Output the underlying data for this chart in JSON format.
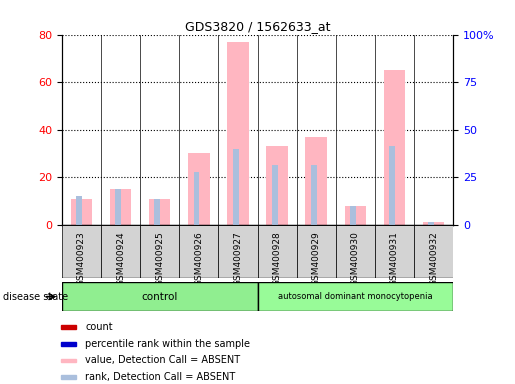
{
  "title": "GDS3820 / 1562633_at",
  "samples": [
    "GSM400923",
    "GSM400924",
    "GSM400925",
    "GSM400926",
    "GSM400927",
    "GSM400928",
    "GSM400929",
    "GSM400930",
    "GSM400931",
    "GSM400932"
  ],
  "value_absent": [
    11,
    15,
    11,
    30,
    77,
    33,
    37,
    8,
    65,
    1
  ],
  "rank_absent": [
    12,
    15,
    11,
    22,
    32,
    25,
    25,
    8,
    33,
    1
  ],
  "ylim_left": [
    0,
    80
  ],
  "ylim_right": [
    0,
    100
  ],
  "yticks_left": [
    0,
    20,
    40,
    60,
    80
  ],
  "yticks_right": [
    0,
    25,
    50,
    75,
    100
  ],
  "yticklabels_right": [
    "0",
    "25",
    "50",
    "75",
    "100%"
  ],
  "bar_color_pink": "#FFB6C1",
  "bar_color_lightblue": "#AABFDD",
  "dot_color_red": "#CC0000",
  "dot_color_blue": "#0000CC",
  "background_color": "#D3D3D3",
  "legend_items": [
    {
      "color": "#CC0000",
      "label": "count"
    },
    {
      "color": "#0000CC",
      "label": "percentile rank within the sample"
    },
    {
      "color": "#FFB6C1",
      "label": "value, Detection Call = ABSENT"
    },
    {
      "color": "#AABFDD",
      "label": "rank, Detection Call = ABSENT"
    }
  ],
  "disease_state_label": "disease state",
  "group_names": [
    "control",
    "autosomal dominant monocytopenia"
  ],
  "group_colors": [
    "#90EE90",
    "#98FB98"
  ],
  "control_indices": [
    0,
    4
  ],
  "disease_indices": [
    5,
    9
  ]
}
